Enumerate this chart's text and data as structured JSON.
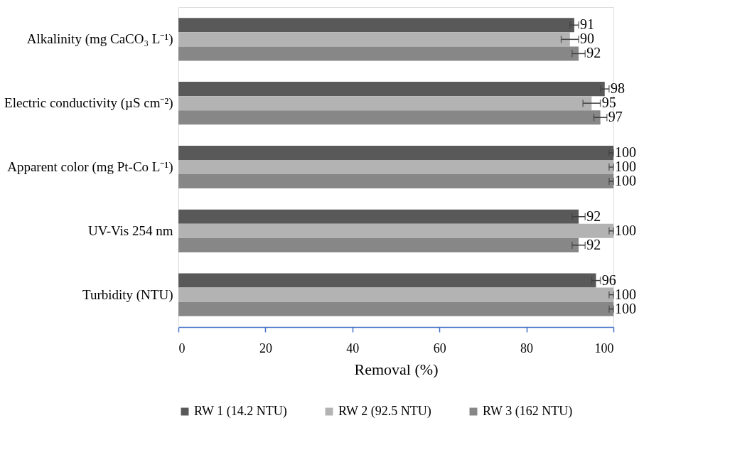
{
  "chart_data": {
    "type": "bar",
    "orientation": "horizontal",
    "xlabel": "Removal (%)",
    "categories": [
      "Alkalinity (mg CaCO₃ L⁻¹)",
      "Electric conductivity (µS cm⁻²)",
      "Apparent color (mg Pt-Co L⁻¹)",
      "UV-Vis 254 nm",
      "Turbidity (NTU)"
    ],
    "series": [
      {
        "name": "RW 1 (14.2 NTU)",
        "color": "#595959",
        "values": [
          91,
          98,
          100,
          92,
          96
        ],
        "errors": [
          1,
          1,
          [
            99,
            100
          ],
          1.5,
          1
        ]
      },
      {
        "name": "RW 2 (92.5 NTU)",
        "color": "#b3b3b3",
        "values": [
          90,
          95,
          100,
          100,
          100
        ],
        "errors": [
          2,
          2,
          [
            99,
            100
          ],
          [
            99,
            100
          ],
          [
            99,
            100
          ]
        ]
      },
      {
        "name": "RW 3 (162 NTU)",
        "color": "#878787",
        "values": [
          92,
          97,
          100,
          92,
          100
        ],
        "errors": [
          1.5,
          1.5,
          [
            99,
            100
          ],
          1.5,
          [
            99,
            100
          ]
        ]
      }
    ],
    "xlim": [
      0,
      100
    ],
    "xticks": [
      0,
      20,
      40,
      60,
      80,
      100
    ],
    "data_labels": true,
    "grid": false,
    "legend": "bottom"
  }
}
